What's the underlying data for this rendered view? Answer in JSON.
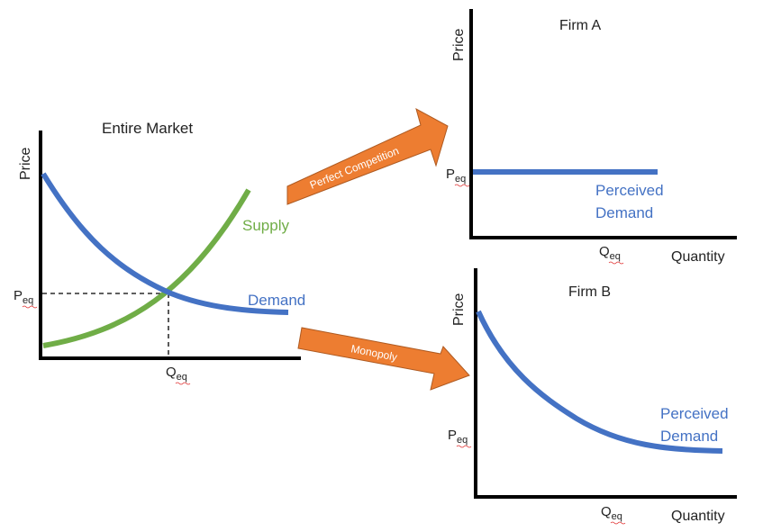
{
  "colors": {
    "axis": "#000000",
    "supply": "#70ad47",
    "demand": "#4472c4",
    "arrow": "#ed7d31",
    "arrow_text": "#ffffff",
    "text": "#222222"
  },
  "market": {
    "title": "Entire Market",
    "ylabel": "Price",
    "supply_label": "Supply",
    "demand_label": "Demand",
    "p_main": "P",
    "p_sub": "eq",
    "q_main": "Q",
    "q_sub": "eq"
  },
  "arrows": {
    "perfect": "Perfect Competition",
    "monopoly": "Monopoly"
  },
  "firm_a": {
    "title": "Firm A",
    "ylabel": "Price",
    "xlabel": "Quantity",
    "demand_line1": "Perceived",
    "demand_line2": "Demand",
    "p_main": "P",
    "p_sub": "eq",
    "q_main": "Q",
    "q_sub": "eq"
  },
  "firm_b": {
    "title": "Firm B",
    "ylabel": "Price",
    "xlabel": "Quantity",
    "demand_line1": "Perceived",
    "demand_line2": "Demand",
    "p_main": "P",
    "p_sub": "eq",
    "q_main": "Q",
    "q_sub": "eq"
  }
}
